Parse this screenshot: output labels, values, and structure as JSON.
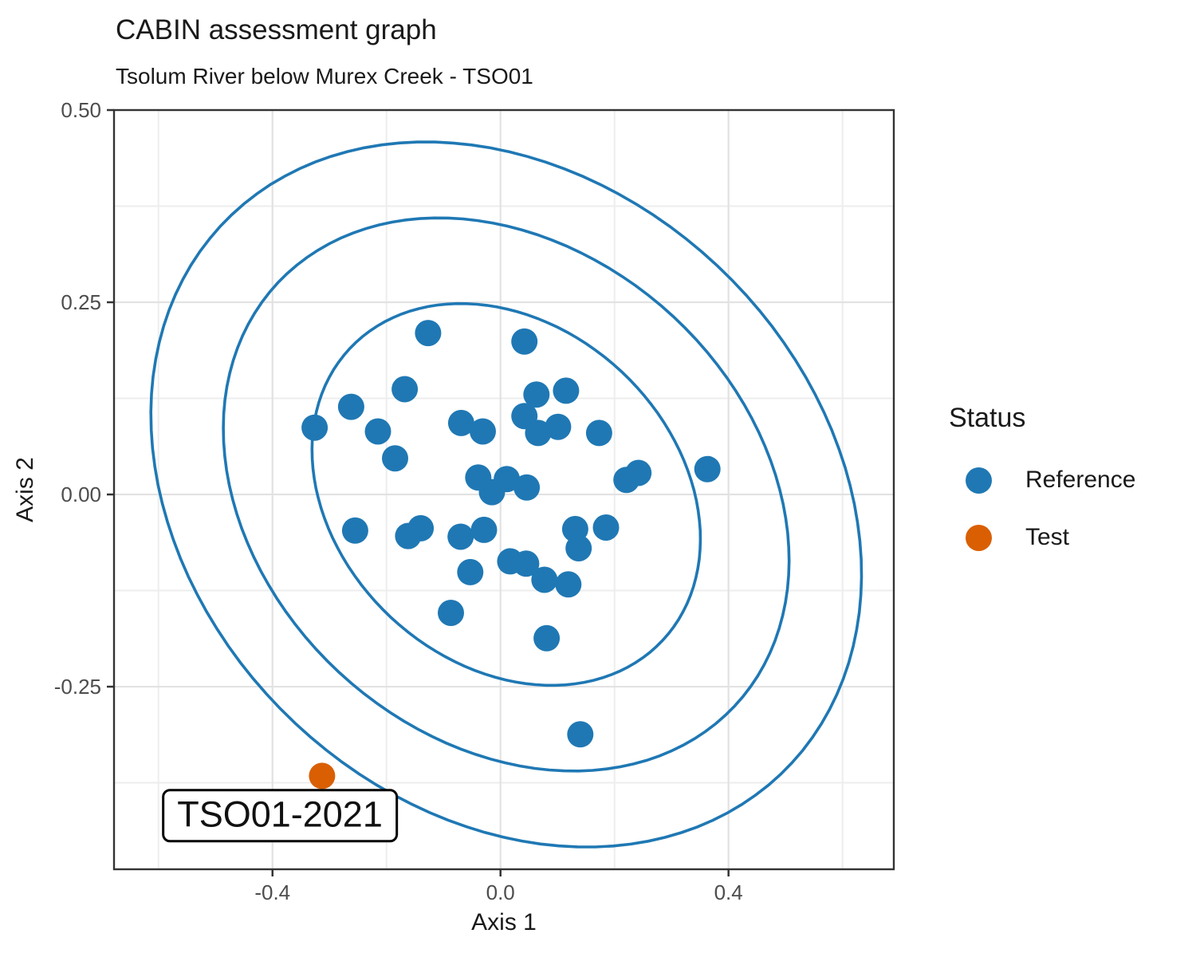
{
  "chart_data": {
    "type": "scatter",
    "title": "CABIN assessment graph",
    "subtitle": "Tsolum River below Murex Creek - TSO01",
    "xlabel": "Axis 1",
    "ylabel": "Axis 2",
    "xlim": [
      -0.678,
      0.69
    ],
    "ylim": [
      -0.4875,
      0.5
    ],
    "grid": true,
    "x_major_ticks": [
      -0.4,
      0.0,
      0.4
    ],
    "x_tick_labels": [
      "-0.4",
      "0.0",
      "0.4"
    ],
    "x_minor_ticks": [
      -0.6,
      -0.2,
      0.2,
      0.6
    ],
    "y_major_ticks": [
      0.5,
      0.25,
      0.0,
      -0.25
    ],
    "y_tick_labels": [
      "0.50",
      "0.25",
      "0.00",
      "-0.25"
    ],
    "y_minor_ticks": [
      0.375,
      0.125,
      -0.125,
      -0.375
    ],
    "legend_position": "right",
    "series": [
      {
        "name": "Reference",
        "color": "#1f78b4",
        "points": [
          [
            -0.127,
            0.21
          ],
          [
            0.042,
            0.199
          ],
          [
            -0.168,
            0.137
          ],
          [
            -0.262,
            0.114
          ],
          [
            -0.326,
            0.087
          ],
          [
            -0.215,
            0.082
          ],
          [
            -0.069,
            0.093
          ],
          [
            -0.031,
            0.082
          ],
          [
            0.063,
            0.13
          ],
          [
            0.115,
            0.135
          ],
          [
            0.042,
            0.102
          ],
          [
            0.066,
            0.08
          ],
          [
            0.101,
            0.088
          ],
          [
            0.173,
            0.08
          ],
          [
            0.221,
            0.019
          ],
          [
            0.242,
            0.028
          ],
          [
            0.363,
            0.033
          ],
          [
            -0.185,
            0.047
          ],
          [
            -0.039,
            0.022
          ],
          [
            -0.015,
            0.003
          ],
          [
            0.011,
            0.02
          ],
          [
            0.046,
            0.009
          ],
          [
            -0.255,
            -0.047
          ],
          [
            -0.162,
            -0.054
          ],
          [
            -0.14,
            -0.044
          ],
          [
            -0.07,
            -0.055
          ],
          [
            -0.029,
            -0.046
          ],
          [
            -0.053,
            -0.101
          ],
          [
            0.017,
            -0.087
          ],
          [
            0.045,
            -0.09
          ],
          [
            0.077,
            -0.111
          ],
          [
            0.119,
            -0.117
          ],
          [
            0.131,
            -0.045
          ],
          [
            0.185,
            -0.043
          ],
          [
            0.137,
            -0.07
          ],
          [
            0.081,
            -0.187
          ],
          [
            -0.087,
            -0.154
          ],
          [
            0.14,
            -0.312
          ]
        ]
      },
      {
        "name": "Test",
        "color": "#d95f02",
        "points": [
          [
            -0.313,
            -0.366
          ]
        ]
      }
    ],
    "ellipses": [
      {
        "name": "inner-confidence-ellipse",
        "cx": 0.01,
        "cy": 0.0,
        "a": 0.35,
        "b": 0.235,
        "rotation_deg": -18,
        "color": "#1f78b4"
      },
      {
        "name": "middle-confidence-ellipse",
        "cx": 0.01,
        "cy": 0.0,
        "a": 0.51,
        "b": 0.34,
        "rotation_deg": -18,
        "color": "#1f78b4"
      },
      {
        "name": "outer-confidence-ellipse",
        "cx": 0.01,
        "cy": 0.0,
        "a": 0.64,
        "b": 0.435,
        "rotation_deg": -18,
        "color": "#1f78b4"
      }
    ],
    "annotation": {
      "text": "TSO01-2021",
      "x": -0.387,
      "y": -0.418
    }
  },
  "legend": {
    "title": "Status",
    "items": [
      {
        "label": "Reference",
        "color": "#1f78b4"
      },
      {
        "label": "Test",
        "color": "#d95f02"
      }
    ]
  }
}
